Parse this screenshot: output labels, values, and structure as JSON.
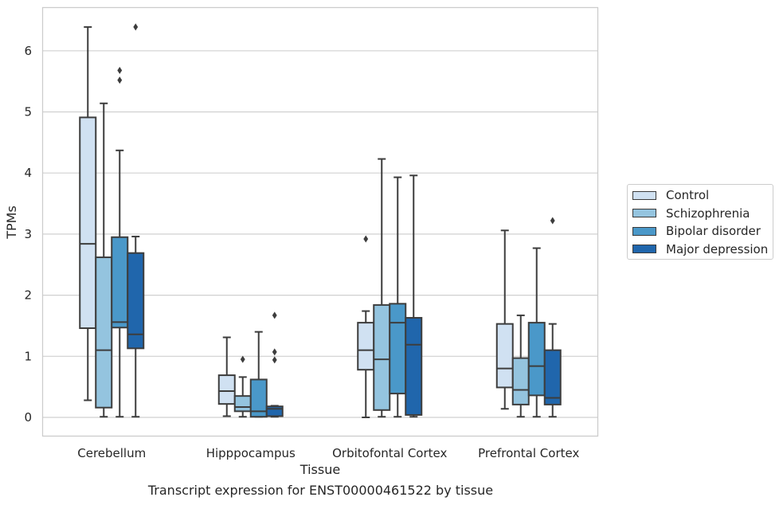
{
  "chart_data": {
    "type": "boxplot",
    "xlabel": "Tissue",
    "ylabel": "TPMs",
    "ylim": [
      -0.3,
      6.7
    ],
    "yticks": [
      0,
      1,
      2,
      3,
      4,
      5,
      6
    ],
    "grid": "horizontal",
    "legend_position": "outside-right",
    "categories": [
      "Cerebellum",
      "Hipppocampus",
      "Orbitofontal Cortex",
      "Prefrontal Cortex"
    ],
    "series": [
      {
        "name": "Control",
        "color": "#d0e1f2",
        "boxes": [
          {
            "whisker_low": 0.28,
            "q1": 1.46,
            "median": 2.84,
            "q3": 4.91,
            "whisker_high": 6.39,
            "outliers": []
          },
          {
            "whisker_low": 0.02,
            "q1": 0.22,
            "median": 0.43,
            "q3": 0.69,
            "whisker_high": 1.31,
            "outliers": []
          },
          {
            "whisker_low": 0.0,
            "q1": 0.78,
            "median": 1.1,
            "q3": 1.55,
            "whisker_high": 1.74,
            "outliers": [
              2.92
            ]
          },
          {
            "whisker_low": 0.14,
            "q1": 0.49,
            "median": 0.8,
            "q3": 1.53,
            "whisker_high": 3.06,
            "outliers": []
          }
        ]
      },
      {
        "name": "Schizophrenia",
        "color": "#94c4df",
        "boxes": [
          {
            "whisker_low": 0.01,
            "q1": 0.16,
            "median": 1.1,
            "q3": 2.62,
            "whisker_high": 5.14,
            "outliers": []
          },
          {
            "whisker_low": 0.01,
            "q1": 0.1,
            "median": 0.17,
            "q3": 0.35,
            "whisker_high": 0.66,
            "outliers": [
              0.95
            ]
          },
          {
            "whisker_low": 0.01,
            "q1": 0.12,
            "median": 0.95,
            "q3": 1.84,
            "whisker_high": 4.23,
            "outliers": []
          },
          {
            "whisker_low": 0.01,
            "q1": 0.21,
            "median": 0.45,
            "q3": 0.97,
            "whisker_high": 1.67,
            "outliers": []
          }
        ]
      },
      {
        "name": "Bipolar disorder",
        "color": "#4a98c9",
        "boxes": [
          {
            "whisker_low": 0.01,
            "q1": 1.47,
            "median": 1.56,
            "q3": 2.95,
            "whisker_high": 4.37,
            "outliers": [
              5.52,
              5.68
            ]
          },
          {
            "whisker_low": 0.01,
            "q1": 0.01,
            "median": 0.1,
            "q3": 0.62,
            "whisker_high": 1.4,
            "outliers": []
          },
          {
            "whisker_low": 0.01,
            "q1": 0.39,
            "median": 1.55,
            "q3": 1.86,
            "whisker_high": 3.93,
            "outliers": []
          },
          {
            "whisker_low": 0.01,
            "q1": 0.36,
            "median": 0.84,
            "q3": 1.55,
            "whisker_high": 2.77,
            "outliers": []
          }
        ]
      },
      {
        "name": "Major depression",
        "color": "#2066ac",
        "boxes": [
          {
            "whisker_low": 0.01,
            "q1": 1.13,
            "median": 1.36,
            "q3": 2.69,
            "whisker_high": 2.96,
            "outliers": [
              6.39
            ]
          },
          {
            "whisker_low": 0.01,
            "q1": 0.02,
            "median": 0.14,
            "q3": 0.18,
            "whisker_high": 0.19,
            "outliers": [
              0.94,
              1.07,
              1.67
            ]
          },
          {
            "whisker_low": 0.01,
            "q1": 0.04,
            "median": 1.19,
            "q3": 1.63,
            "whisker_high": 3.96,
            "outliers": []
          },
          {
            "whisker_low": 0.01,
            "q1": 0.21,
            "median": 0.32,
            "q3": 1.1,
            "whisker_high": 1.53,
            "outliers": [
              3.22
            ]
          }
        ]
      }
    ],
    "caption": "Transcript expression for ENST00000461522 by tissue"
  }
}
